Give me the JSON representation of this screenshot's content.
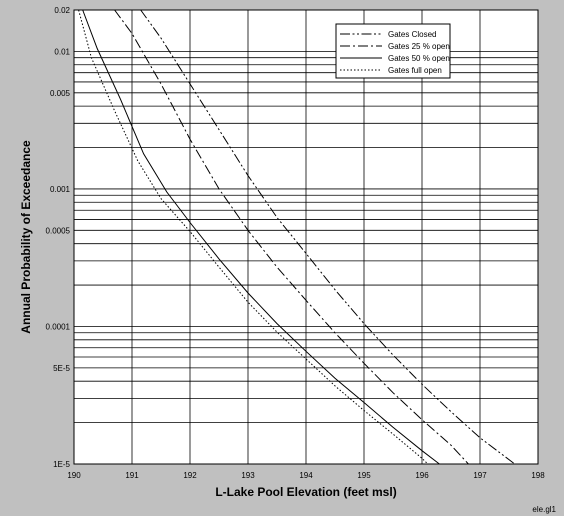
{
  "chart_data": {
    "type": "line",
    "title": "",
    "xlabel": "L-Lake Pool Elevation (feet msl)",
    "ylabel": "Annual Probability of Exceedance",
    "xlim": [
      190,
      198
    ],
    "ylim": [
      1e-05,
      0.02
    ],
    "yscale": "log",
    "grid": true,
    "legend_position": "top-right",
    "x_ticks": [
      "190",
      "191",
      "192",
      "193",
      "194",
      "195",
      "196",
      "197",
      "198"
    ],
    "y_ticks": [
      {
        "value": 0.02,
        "label": "0.02"
      },
      {
        "value": 0.01,
        "label": "0.01"
      },
      {
        "value": 0.005,
        "label": "0.005"
      },
      {
        "value": 0.001,
        "label": "0.001"
      },
      {
        "value": 0.0005,
        "label": "0.0005"
      },
      {
        "value": 0.0001,
        "label": "0.0001"
      },
      {
        "value": 5e-05,
        "label": "5E-5"
      },
      {
        "value": 1e-05,
        "label": "1E-5"
      }
    ],
    "series": [
      {
        "name": "Gates Closed",
        "dash": "dash-dot-dot",
        "points": [
          [
            191.15,
            0.02
          ],
          [
            191.5,
            0.0125
          ],
          [
            192.0,
            0.0058
          ],
          [
            192.5,
            0.0027
          ],
          [
            193.0,
            0.00125
          ],
          [
            193.5,
            0.00062
          ],
          [
            194.0,
            0.00034
          ],
          [
            194.5,
            0.000185
          ],
          [
            195.0,
            0.000105
          ],
          [
            195.5,
            6.2e-05
          ],
          [
            196.0,
            3.8e-05
          ],
          [
            196.5,
            2.4e-05
          ],
          [
            197.0,
            1.55e-05
          ],
          [
            197.6,
            1e-05
          ]
        ]
      },
      {
        "name": "Gates 25 % open",
        "dash": "dash-dot",
        "points": [
          [
            190.7,
            0.02
          ],
          [
            191.0,
            0.0135
          ],
          [
            191.5,
            0.0058
          ],
          [
            192.0,
            0.0023
          ],
          [
            192.5,
            0.001
          ],
          [
            193.0,
            0.0005
          ],
          [
            193.5,
            0.00027
          ],
          [
            194.0,
            0.000155
          ],
          [
            194.5,
            9e-05
          ],
          [
            195.0,
            5.4e-05
          ],
          [
            195.5,
            3.3e-05
          ],
          [
            196.0,
            2.1e-05
          ],
          [
            196.5,
            1.37e-05
          ],
          [
            196.8,
            1e-05
          ]
        ]
      },
      {
        "name": "Gates 50 % open",
        "dash": "solid",
        "points": [
          [
            190.15,
            0.02
          ],
          [
            190.4,
            0.0105
          ],
          [
            190.8,
            0.0045
          ],
          [
            191.2,
            0.0018
          ],
          [
            191.6,
            0.00095
          ],
          [
            192.0,
            0.00057
          ],
          [
            192.5,
            0.00031
          ],
          [
            193.0,
            0.000175
          ],
          [
            193.5,
            0.000105
          ],
          [
            194.0,
            6.6e-05
          ],
          [
            194.5,
            4.2e-05
          ],
          [
            195.0,
            2.8e-05
          ],
          [
            195.5,
            1.85e-05
          ],
          [
            196.0,
            1.25e-05
          ],
          [
            196.3,
            1e-05
          ]
        ]
      },
      {
        "name": "Gates full open",
        "dash": "dotted",
        "points": [
          [
            190.08,
            0.02
          ],
          [
            190.3,
            0.009
          ],
          [
            190.7,
            0.0037
          ],
          [
            191.1,
            0.0016
          ],
          [
            191.5,
            0.00085
          ],
          [
            192.0,
            0.00049
          ],
          [
            192.5,
            0.00027
          ],
          [
            193.0,
            0.00015
          ],
          [
            193.5,
            9.1e-05
          ],
          [
            194.0,
            5.8e-05
          ],
          [
            194.5,
            3.7e-05
          ],
          [
            195.0,
            2.45e-05
          ],
          [
            195.5,
            1.65e-05
          ],
          [
            196.0,
            1.1e-05
          ],
          [
            196.1,
            1e-05
          ]
        ]
      }
    ]
  },
  "footer_label": "ele.gl1"
}
